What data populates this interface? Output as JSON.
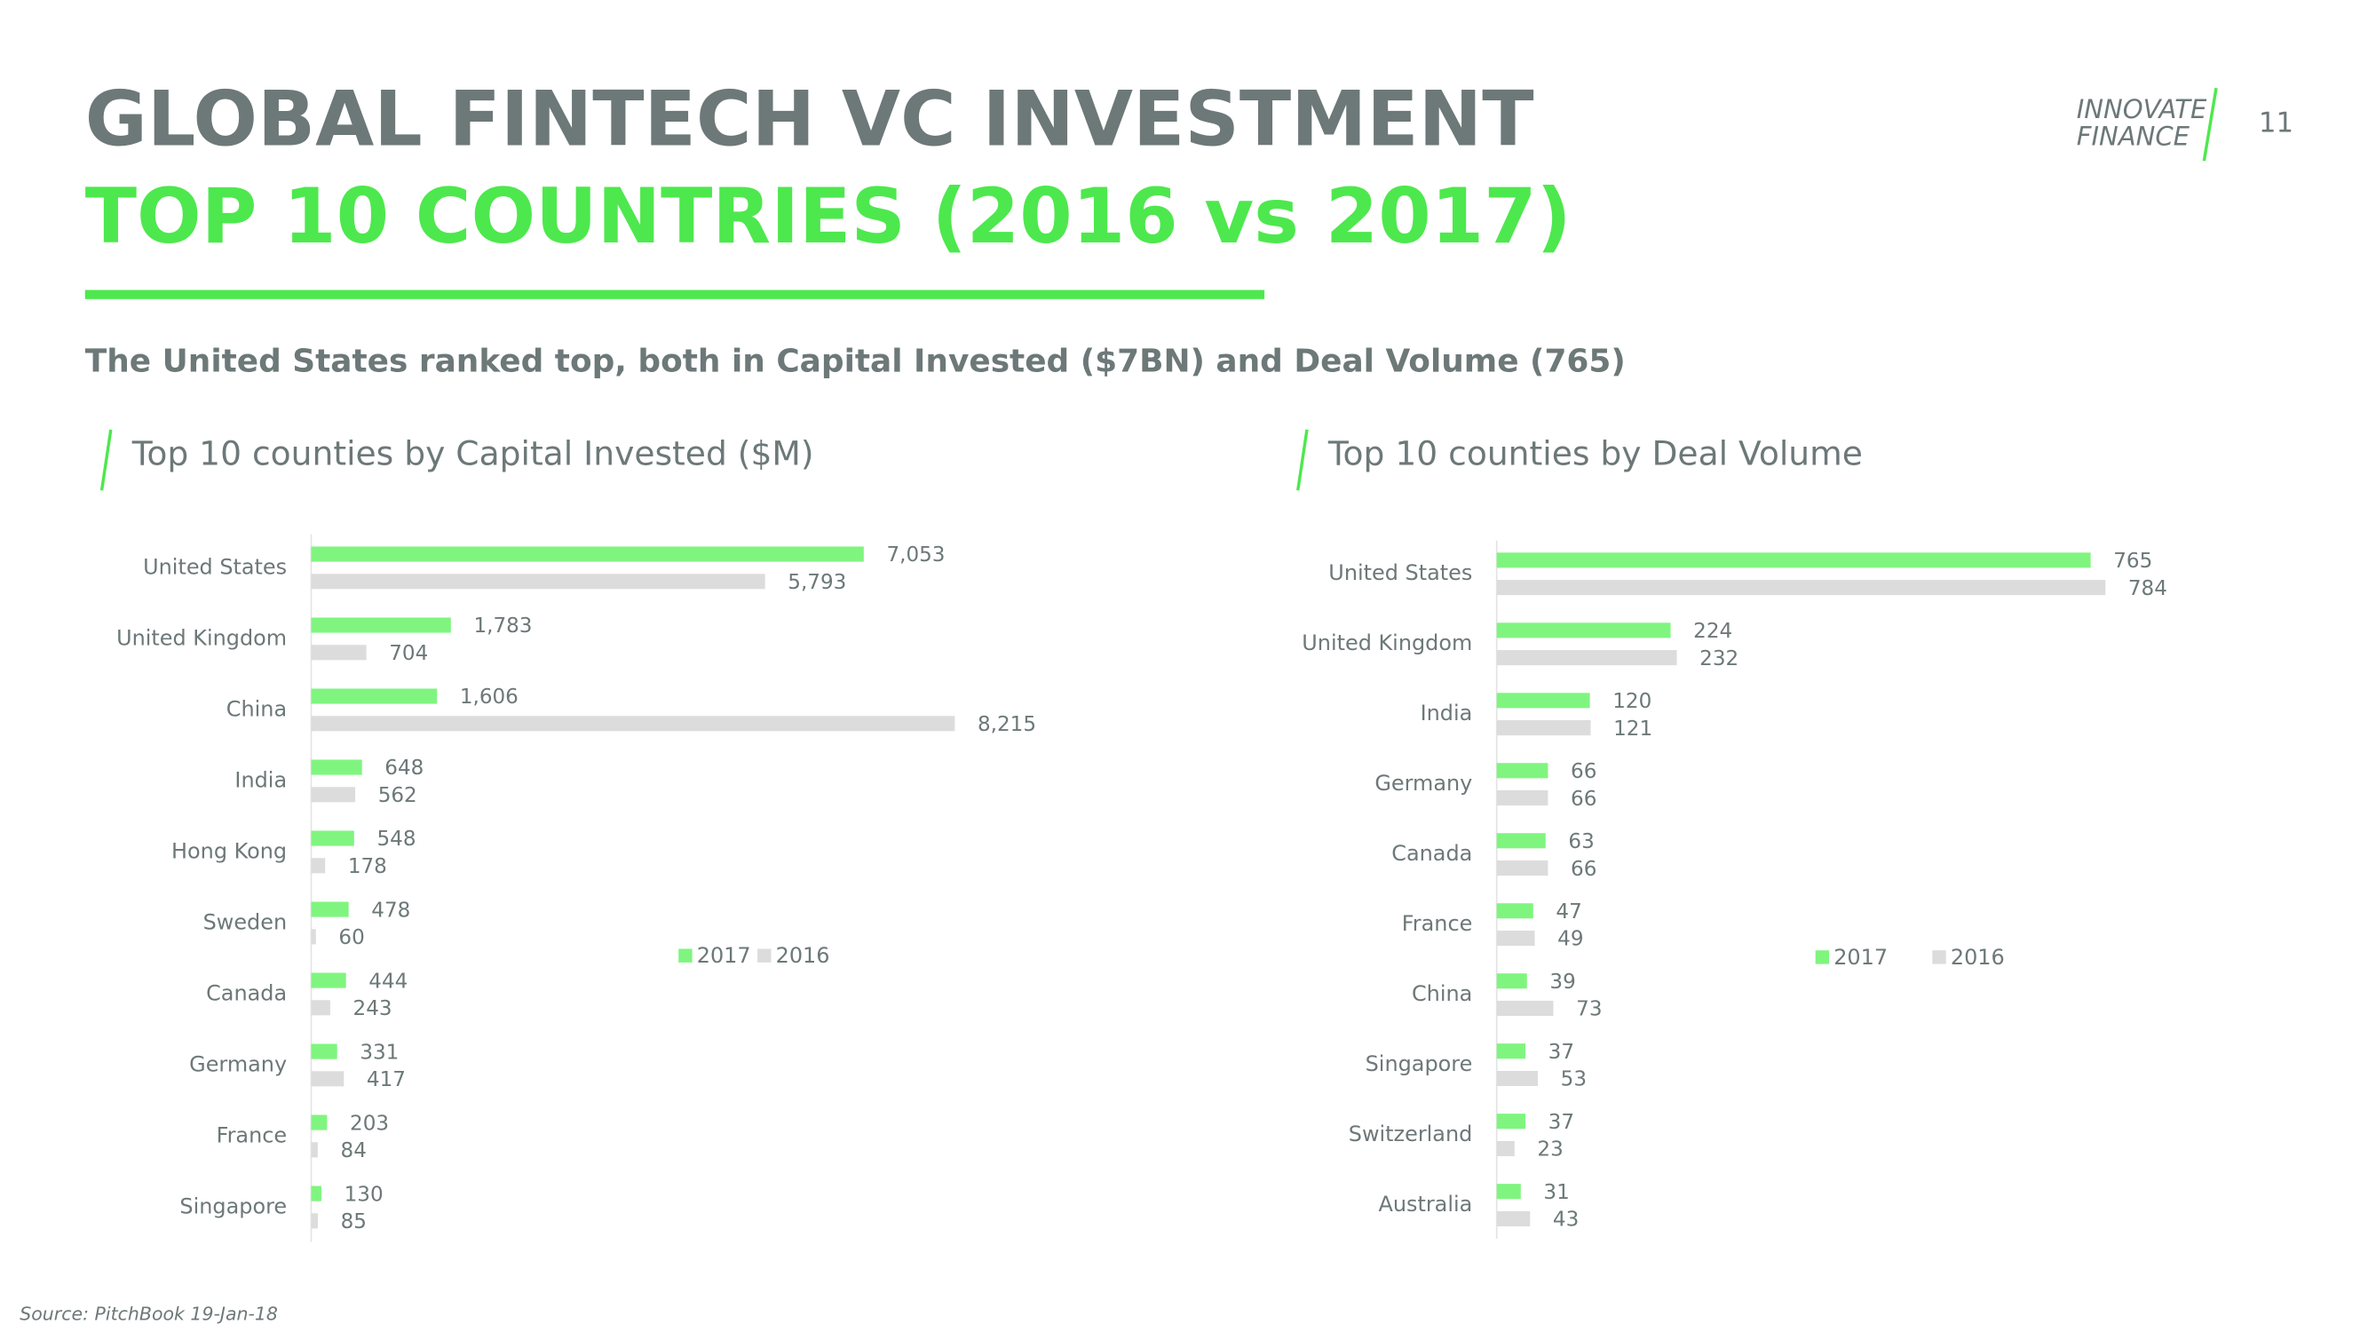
{
  "header": {
    "title": "GLOBAL FINTECH VC INVESTMENT",
    "subtitle": "TOP 10 COUNTRIES (2016 vs 2017)",
    "logo": [
      "INNOVATE",
      "FINANCE"
    ],
    "page_number": "11"
  },
  "summary": "The United States ranked top, both in Capital Invested ($7BN) and Deal Volume (765)",
  "source": "Source: PitchBook 19-Jan-18",
  "chart_data": [
    {
      "type": "bar",
      "orientation": "horizontal",
      "title": "Top 10 counties by Capital Invested ($M)",
      "categories": [
        "United States",
        "United Kingdom",
        "China",
        "India",
        "Hong Kong",
        "Sweden",
        "Canada",
        "Germany",
        "France",
        "Singapore"
      ],
      "series": [
        {
          "name": "2017",
          "color": "#7ff57f",
          "values": [
            7053,
            1783,
            1606,
            648,
            548,
            478,
            444,
            331,
            203,
            130
          ],
          "value_labels": [
            "7,053",
            "1,783",
            "1,606",
            "648",
            "548",
            "478",
            "444",
            "331",
            "203",
            "130"
          ]
        },
        {
          "name": "2016",
          "color": "#dcdcdc",
          "values": [
            5793,
            704,
            8215,
            562,
            178,
            60,
            243,
            417,
            84,
            85
          ],
          "value_labels": [
            "5,793",
            "704",
            "8,215",
            "562",
            "178",
            "60",
            "243",
            "417",
            "84",
            "85"
          ]
        }
      ]
    },
    {
      "type": "bar",
      "orientation": "horizontal",
      "title": "Top 10 counties by Deal Volume",
      "categories": [
        "United States",
        "United Kingdom",
        "India",
        "Germany",
        "Canada",
        "France",
        "China",
        "Singapore",
        "Switzerland",
        "Australia"
      ],
      "series": [
        {
          "name": "2017",
          "color": "#7ff57f",
          "values": [
            765,
            224,
            120,
            66,
            63,
            47,
            39,
            37,
            37,
            31
          ]
        },
        {
          "name": "2016",
          "color": "#dcdcdc",
          "values": [
            784,
            232,
            121,
            66,
            66,
            49,
            73,
            53,
            23,
            43
          ]
        }
      ]
    }
  ]
}
